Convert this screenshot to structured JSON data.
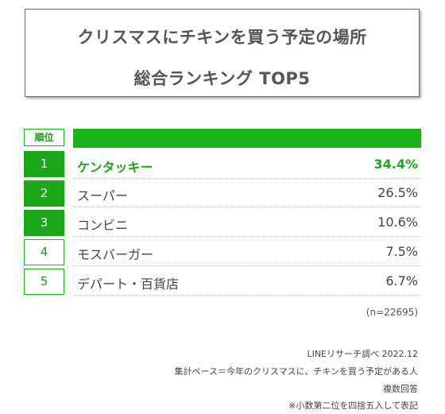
{
  "title": {
    "line1": "クリスマスにチキンを買う予定の場所",
    "line2": "総合ランキング TOP5"
  },
  "rank_header": "順位",
  "chart_data": {
    "type": "table",
    "title": "クリスマスにチキンを買う予定の場所 総合ランキング TOP5",
    "rows": [
      {
        "rank": "1",
        "label": "ケンタッキー",
        "value": "34.4%",
        "percent": 34.4
      },
      {
        "rank": "2",
        "label": "スーパー",
        "value": "26.5%",
        "percent": 26.5
      },
      {
        "rank": "3",
        "label": "コンビニ",
        "value": "10.6%",
        "percent": 10.6
      },
      {
        "rank": "4",
        "label": "モスバーガー",
        "value": "7.5%",
        "percent": 7.5
      },
      {
        "rank": "5",
        "label": "デパート・百貨店",
        "value": "6.7%",
        "percent": 6.7
      }
    ]
  },
  "sample_size": "(n=22695)",
  "notes": {
    "source": "LINEリサーチ調べ 2022.12",
    "base": "集計ベース＝今年のクリスマスに、チキンを買う予定がある人",
    "answer_type": "複数回答",
    "rounding": "※小数第二位を四捨五入して表記"
  },
  "colors": {
    "accent_green": "#1bb31b",
    "rank_fill": "#1aa81a",
    "top_text": "#18a818"
  }
}
